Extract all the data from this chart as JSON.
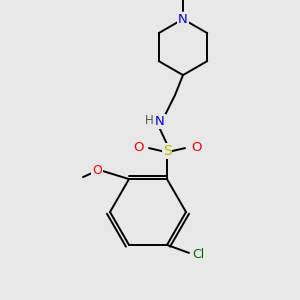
{
  "background_color": "#e8e8e8",
  "atom_colors": {
    "N": "#0000ee",
    "O": "#ff0000",
    "S": "#bbbb00",
    "Cl": "#006600",
    "C": "#000000",
    "H": "#555555"
  },
  "figsize": [
    3.0,
    3.0
  ],
  "dpi": 100
}
